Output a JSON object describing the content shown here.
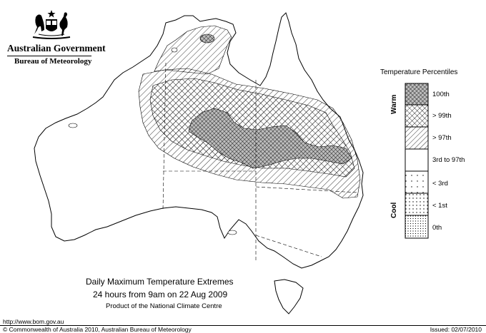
{
  "header": {
    "government": "Australian Government",
    "bureau": "Bureau of Meteorology"
  },
  "legend": {
    "title": "Temperature Percentiles",
    "warm_label": "Warm",
    "cool_label": "Cool",
    "items": [
      {
        "label": "100th",
        "pattern": "crosshatch-dense"
      },
      {
        "label": "> 99th",
        "pattern": "crosshatch"
      },
      {
        "label": "> 97th",
        "pattern": "diagonal"
      },
      {
        "label": "3rd to 97th",
        "pattern": "blank"
      },
      {
        "label": "< 3rd",
        "pattern": "dots-sparse"
      },
      {
        "label": "< 1st",
        "pattern": "dots"
      },
      {
        "label": "0th",
        "pattern": "dots-dense"
      }
    ]
  },
  "caption": {
    "line1": "Daily Maximum Temperature Extremes",
    "line2": "24 hours from 9am on 22 Aug 2009",
    "line3": "Product of the National Climate Centre"
  },
  "footer": {
    "url": "http://www.bom.gov.au",
    "copyright": "© Commonwealth of Australia 2010, Australian Bureau of Meteorology",
    "issued": "Issued: 02/07/2010"
  },
  "colors": {
    "ink": "#000000",
    "background": "#ffffff"
  }
}
